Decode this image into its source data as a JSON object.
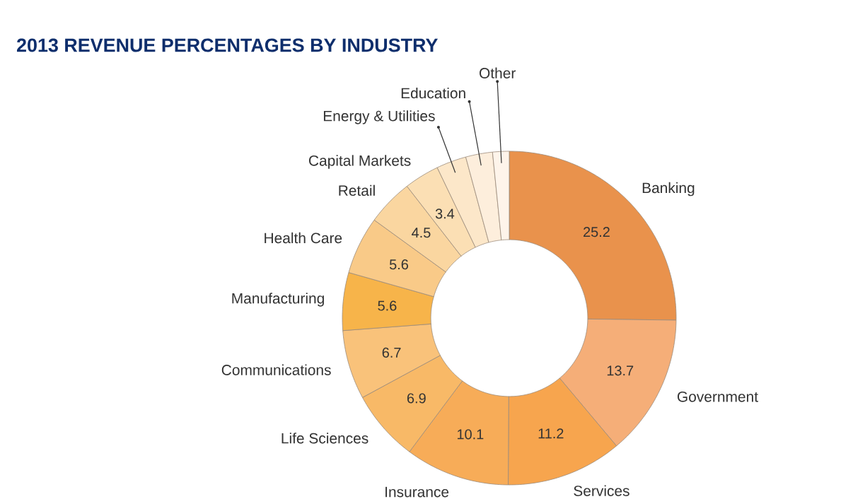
{
  "chart_data": {
    "type": "donut",
    "title": "2013 REVENUE PERCENTAGES BY INDUSTRY",
    "categories": [
      "Banking",
      "Government",
      "Services",
      "Insurance",
      "Life Sciences",
      "Communications",
      "Manufacturing",
      "Health Care",
      "Retail",
      "Capital Markets",
      "Energy & Utilities",
      "Education",
      "Other"
    ],
    "values": [
      25.2,
      13.7,
      11.2,
      10.1,
      6.9,
      6.7,
      5.6,
      5.6,
      4.5,
      3.4,
      2.9,
      2.6,
      1.6
    ],
    "value_labels": [
      "25.2",
      "13.7",
      "11.2",
      "10.1",
      "6.9",
      "6.7",
      "5.6",
      "5.6",
      "4.5",
      "3.4",
      null,
      null,
      null
    ],
    "colors": [
      "#e9924c",
      "#f5ae78",
      "#f7a54e",
      "#f7ac58",
      "#f8b967",
      "#f9c27a",
      "#f7b44a",
      "#f9ca88",
      "#fad6a0",
      "#fbdfb4",
      "#fce7c9",
      "#fdeedc",
      "#fef4ea"
    ],
    "legend": false
  }
}
